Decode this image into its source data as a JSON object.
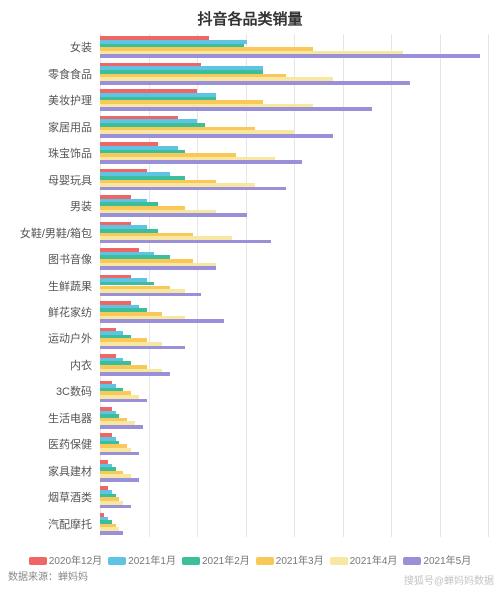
{
  "chart": {
    "type": "grouped-horizontal-bar",
    "title": "抖音各品类销量",
    "title_fontsize": 15,
    "title_color": "#333333",
    "background_color": "#ffffff",
    "grid_color": "#e6e6e6",
    "xmax": 100,
    "xtick_count": 9,
    "ylabel_fontsize": 11,
    "ylabel_color": "#555555",
    "bar_gap_ratio": 0.18,
    "series": [
      {
        "name": "2020年12月",
        "color": "#ee6666"
      },
      {
        "name": "2021年1月",
        "color": "#5fc3e4"
      },
      {
        "name": "2021年2月",
        "color": "#3bbf9b"
      },
      {
        "name": "2021年3月",
        "color": "#fac858"
      },
      {
        "name": "2021年4月",
        "color": "#f8e7a1"
      },
      {
        "name": "2021年5月",
        "color": "#9a8fd9"
      }
    ],
    "categories": [
      {
        "label": "女装",
        "values": [
          28,
          38,
          37,
          55,
          78,
          98
        ]
      },
      {
        "label": "零食食品",
        "values": [
          26,
          42,
          42,
          48,
          60,
          80
        ]
      },
      {
        "label": "美妆护理",
        "values": [
          25,
          30,
          30,
          42,
          55,
          70
        ]
      },
      {
        "label": "家居用品",
        "values": [
          20,
          25,
          27,
          40,
          50,
          60
        ]
      },
      {
        "label": "珠宝饰品",
        "values": [
          15,
          20,
          22,
          35,
          45,
          52
        ]
      },
      {
        "label": "母婴玩具",
        "values": [
          12,
          18,
          22,
          30,
          40,
          48
        ]
      },
      {
        "label": "男装",
        "values": [
          8,
          12,
          15,
          22,
          30,
          38
        ]
      },
      {
        "label": "女鞋/男鞋/箱包",
        "values": [
          8,
          12,
          15,
          24,
          34,
          44
        ]
      },
      {
        "label": "图书音像",
        "values": [
          10,
          14,
          18,
          24,
          30,
          30
        ]
      },
      {
        "label": "生鲜蔬果",
        "values": [
          8,
          12,
          14,
          18,
          22,
          26
        ]
      },
      {
        "label": "鲜花家纺",
        "values": [
          8,
          10,
          12,
          16,
          22,
          32
        ]
      },
      {
        "label": "运动户外",
        "values": [
          4,
          6,
          8,
          12,
          16,
          22
        ]
      },
      {
        "label": "内衣",
        "values": [
          4,
          6,
          8,
          12,
          16,
          18
        ]
      },
      {
        "label": "3C数码",
        "values": [
          3,
          4,
          6,
          8,
          10,
          12
        ]
      },
      {
        "label": "生活电器",
        "values": [
          3,
          4,
          5,
          7,
          9,
          11
        ]
      },
      {
        "label": "医药保健",
        "values": [
          3,
          4,
          5,
          7,
          8,
          10
        ]
      },
      {
        "label": "家具建材",
        "values": [
          2,
          3,
          4,
          6,
          8,
          10
        ]
      },
      {
        "label": "烟草酒类",
        "values": [
          2,
          3,
          4,
          5,
          6,
          8
        ]
      },
      {
        "label": "汽配摩托",
        "values": [
          1,
          2,
          3,
          4,
          5,
          6
        ]
      }
    ],
    "source_label": "数据来源：蝉妈妈",
    "watermark": "搜狐号@蝉妈妈数据"
  }
}
